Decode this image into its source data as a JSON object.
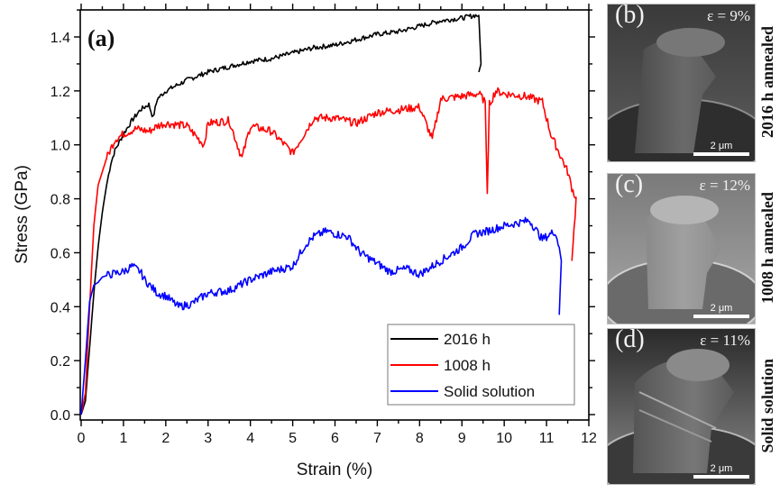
{
  "chart_data": {
    "type": "line",
    "title": "",
    "panel_label": "(a)",
    "xlabel": "Strain (%)",
    "ylabel": "Stress (GPa)",
    "xlim": [
      0,
      12
    ],
    "ylim": [
      0,
      1.5
    ],
    "xticks": [
      "0",
      "1",
      "2",
      "3",
      "4",
      "5",
      "6",
      "7",
      "8",
      "9",
      "10",
      "11",
      "12"
    ],
    "yticks": [
      "0.0",
      "0.2",
      "0.4",
      "0.6",
      "0.8",
      "1.0",
      "1.2",
      "1.4"
    ],
    "grid": false,
    "legend_position": "bottom-right",
    "series": [
      {
        "name": "2016 h",
        "color": "#000000",
        "x": [
          0,
          0.1,
          0.2,
          0.3,
          0.4,
          0.5,
          0.6,
          0.7,
          0.8,
          0.9,
          1.0,
          1.2,
          1.4,
          1.6,
          1.7,
          1.8,
          2.0,
          2.5,
          3.0,
          3.5,
          4.0,
          4.5,
          5.0,
          5.5,
          6.0,
          6.5,
          7.0,
          7.5,
          8.0,
          8.5,
          9.0,
          9.3,
          9.4,
          9.45,
          9.4
        ],
        "y": [
          0,
          0.05,
          0.25,
          0.45,
          0.62,
          0.75,
          0.85,
          0.93,
          0.98,
          1.01,
          1.04,
          1.09,
          1.13,
          1.15,
          1.1,
          1.17,
          1.2,
          1.24,
          1.27,
          1.29,
          1.31,
          1.32,
          1.34,
          1.36,
          1.37,
          1.39,
          1.41,
          1.42,
          1.44,
          1.46,
          1.47,
          1.48,
          1.48,
          1.3,
          1.27
        ]
      },
      {
        "name": "1008 h",
        "color": "#ff0000",
        "x": [
          0,
          0.1,
          0.2,
          0.3,
          0.4,
          0.5,
          0.6,
          0.8,
          1.0,
          1.3,
          1.6,
          1.8,
          2.0,
          2.5,
          2.9,
          3.0,
          3.5,
          3.8,
          4.0,
          4.5,
          5.0,
          5.5,
          6.0,
          6.5,
          7.0,
          7.5,
          8.0,
          8.3,
          8.5,
          9.0,
          9.4,
          9.55,
          9.6,
          9.65,
          9.8,
          10.0,
          10.5,
          10.9,
          11.1,
          11.3,
          11.5,
          11.6,
          11.7,
          11.6
        ],
        "y": [
          0,
          0.08,
          0.4,
          0.7,
          0.85,
          0.9,
          0.95,
          1.02,
          1.04,
          1.06,
          1.05,
          1.07,
          1.08,
          1.07,
          1.0,
          1.08,
          1.09,
          0.95,
          1.07,
          1.05,
          0.97,
          1.1,
          1.1,
          1.08,
          1.12,
          1.13,
          1.14,
          1.02,
          1.17,
          1.18,
          1.19,
          1.16,
          0.82,
          1.15,
          1.2,
          1.19,
          1.18,
          1.16,
          1.04,
          0.97,
          0.9,
          0.84,
          0.8,
          0.57
        ]
      },
      {
        "name": "Solid solution",
        "color": "#0000ff",
        "x": [
          0,
          0.1,
          0.2,
          0.3,
          0.4,
          0.5,
          0.7,
          1.0,
          1.2,
          1.4,
          1.5,
          1.8,
          2.0,
          2.3,
          2.6,
          3.0,
          3.5,
          4.0,
          4.5,
          5.0,
          5.3,
          5.5,
          5.8,
          6.0,
          6.3,
          6.6,
          7.0,
          7.3,
          7.7,
          8.0,
          8.5,
          9.0,
          9.3,
          9.6,
          10.0,
          10.3,
          10.6,
          10.9,
          11.2,
          11.3,
          11.35,
          11.3
        ],
        "y": [
          0,
          0.2,
          0.42,
          0.48,
          0.49,
          0.51,
          0.52,
          0.53,
          0.55,
          0.53,
          0.5,
          0.45,
          0.44,
          0.4,
          0.41,
          0.45,
          0.46,
          0.5,
          0.53,
          0.55,
          0.63,
          0.66,
          0.68,
          0.67,
          0.66,
          0.6,
          0.56,
          0.53,
          0.54,
          0.52,
          0.57,
          0.62,
          0.67,
          0.68,
          0.7,
          0.71,
          0.72,
          0.65,
          0.68,
          0.62,
          0.57,
          0.37
        ]
      }
    ]
  },
  "sem_panels": [
    {
      "label": "(b)",
      "strain_text": "ε = 9%",
      "scale_bar": "2 μm",
      "condition": "2016 h annealed"
    },
    {
      "label": "(c)",
      "strain_text": "ε = 12%",
      "scale_bar": "2 μm",
      "condition": "1008 h annealed"
    },
    {
      "label": "(d)",
      "strain_text": "ε = 11%",
      "scale_bar": "2 μm",
      "condition": "Solid solution"
    }
  ]
}
